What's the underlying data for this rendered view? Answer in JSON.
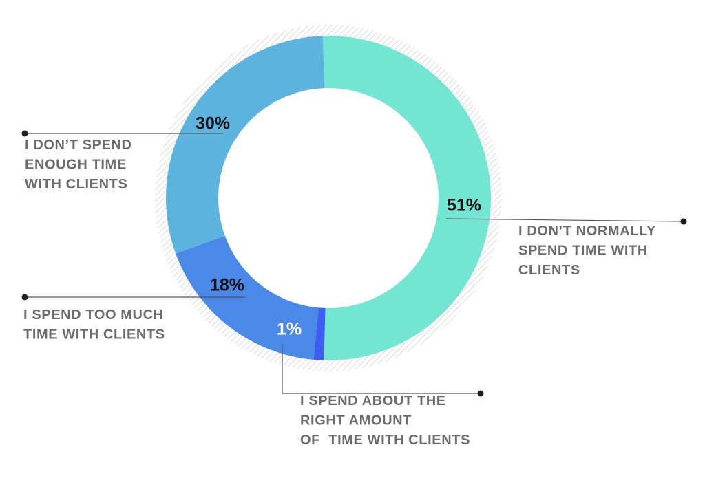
{
  "chart_data": {
    "type": "pie",
    "title": "",
    "categories": [
      "I DON'T NORMALLY SPEND TIME WITH CLIENTS",
      "I SPEND ABOUT THE RIGHT AMOUNT OF  TIME WITH CLIENTS",
      "I SPEND TOO MUCH TIME WITH CLIENTS",
      "I DON'T SPEND ENOUGH TIME WITH CLIENTS"
    ],
    "values": [
      51,
      1,
      18,
      30
    ],
    "unit": "%",
    "donut": true,
    "slices": [
      {
        "value": 51,
        "value_label": "51%",
        "color": "#72e6d2",
        "label_color": "#111111",
        "label_lines": [
          "I DON’T NORMALLY",
          "SPEND TIME WITH",
          "CLIENTS"
        ]
      },
      {
        "value": 1,
        "value_label": "1%",
        "color": "#3a5ff2",
        "label_color": "#ffffff",
        "label_lines": [
          "I SPEND ABOUT THE",
          "RIGHT AMOUNT",
          "OF  TIME WITH CLIENTS"
        ]
      },
      {
        "value": 18,
        "value_label": "18%",
        "color": "#4a89e8",
        "label_color": "#111111",
        "label_lines": [
          "I SPEND TOO MUCH",
          "TIME WITH CLIENTS"
        ]
      },
      {
        "value": 30,
        "value_label": "30%",
        "color": "#5cb4de",
        "label_color": "#111111",
        "label_lines": [
          "I DON’T SPEND",
          "ENOUGH TIME",
          "WITH CLIENTS"
        ]
      }
    ],
    "colors": {
      "category_text": "#6b6b6b",
      "leader_line": "#555555",
      "dot": "#222222",
      "hatch": "#dcdcdc"
    }
  }
}
